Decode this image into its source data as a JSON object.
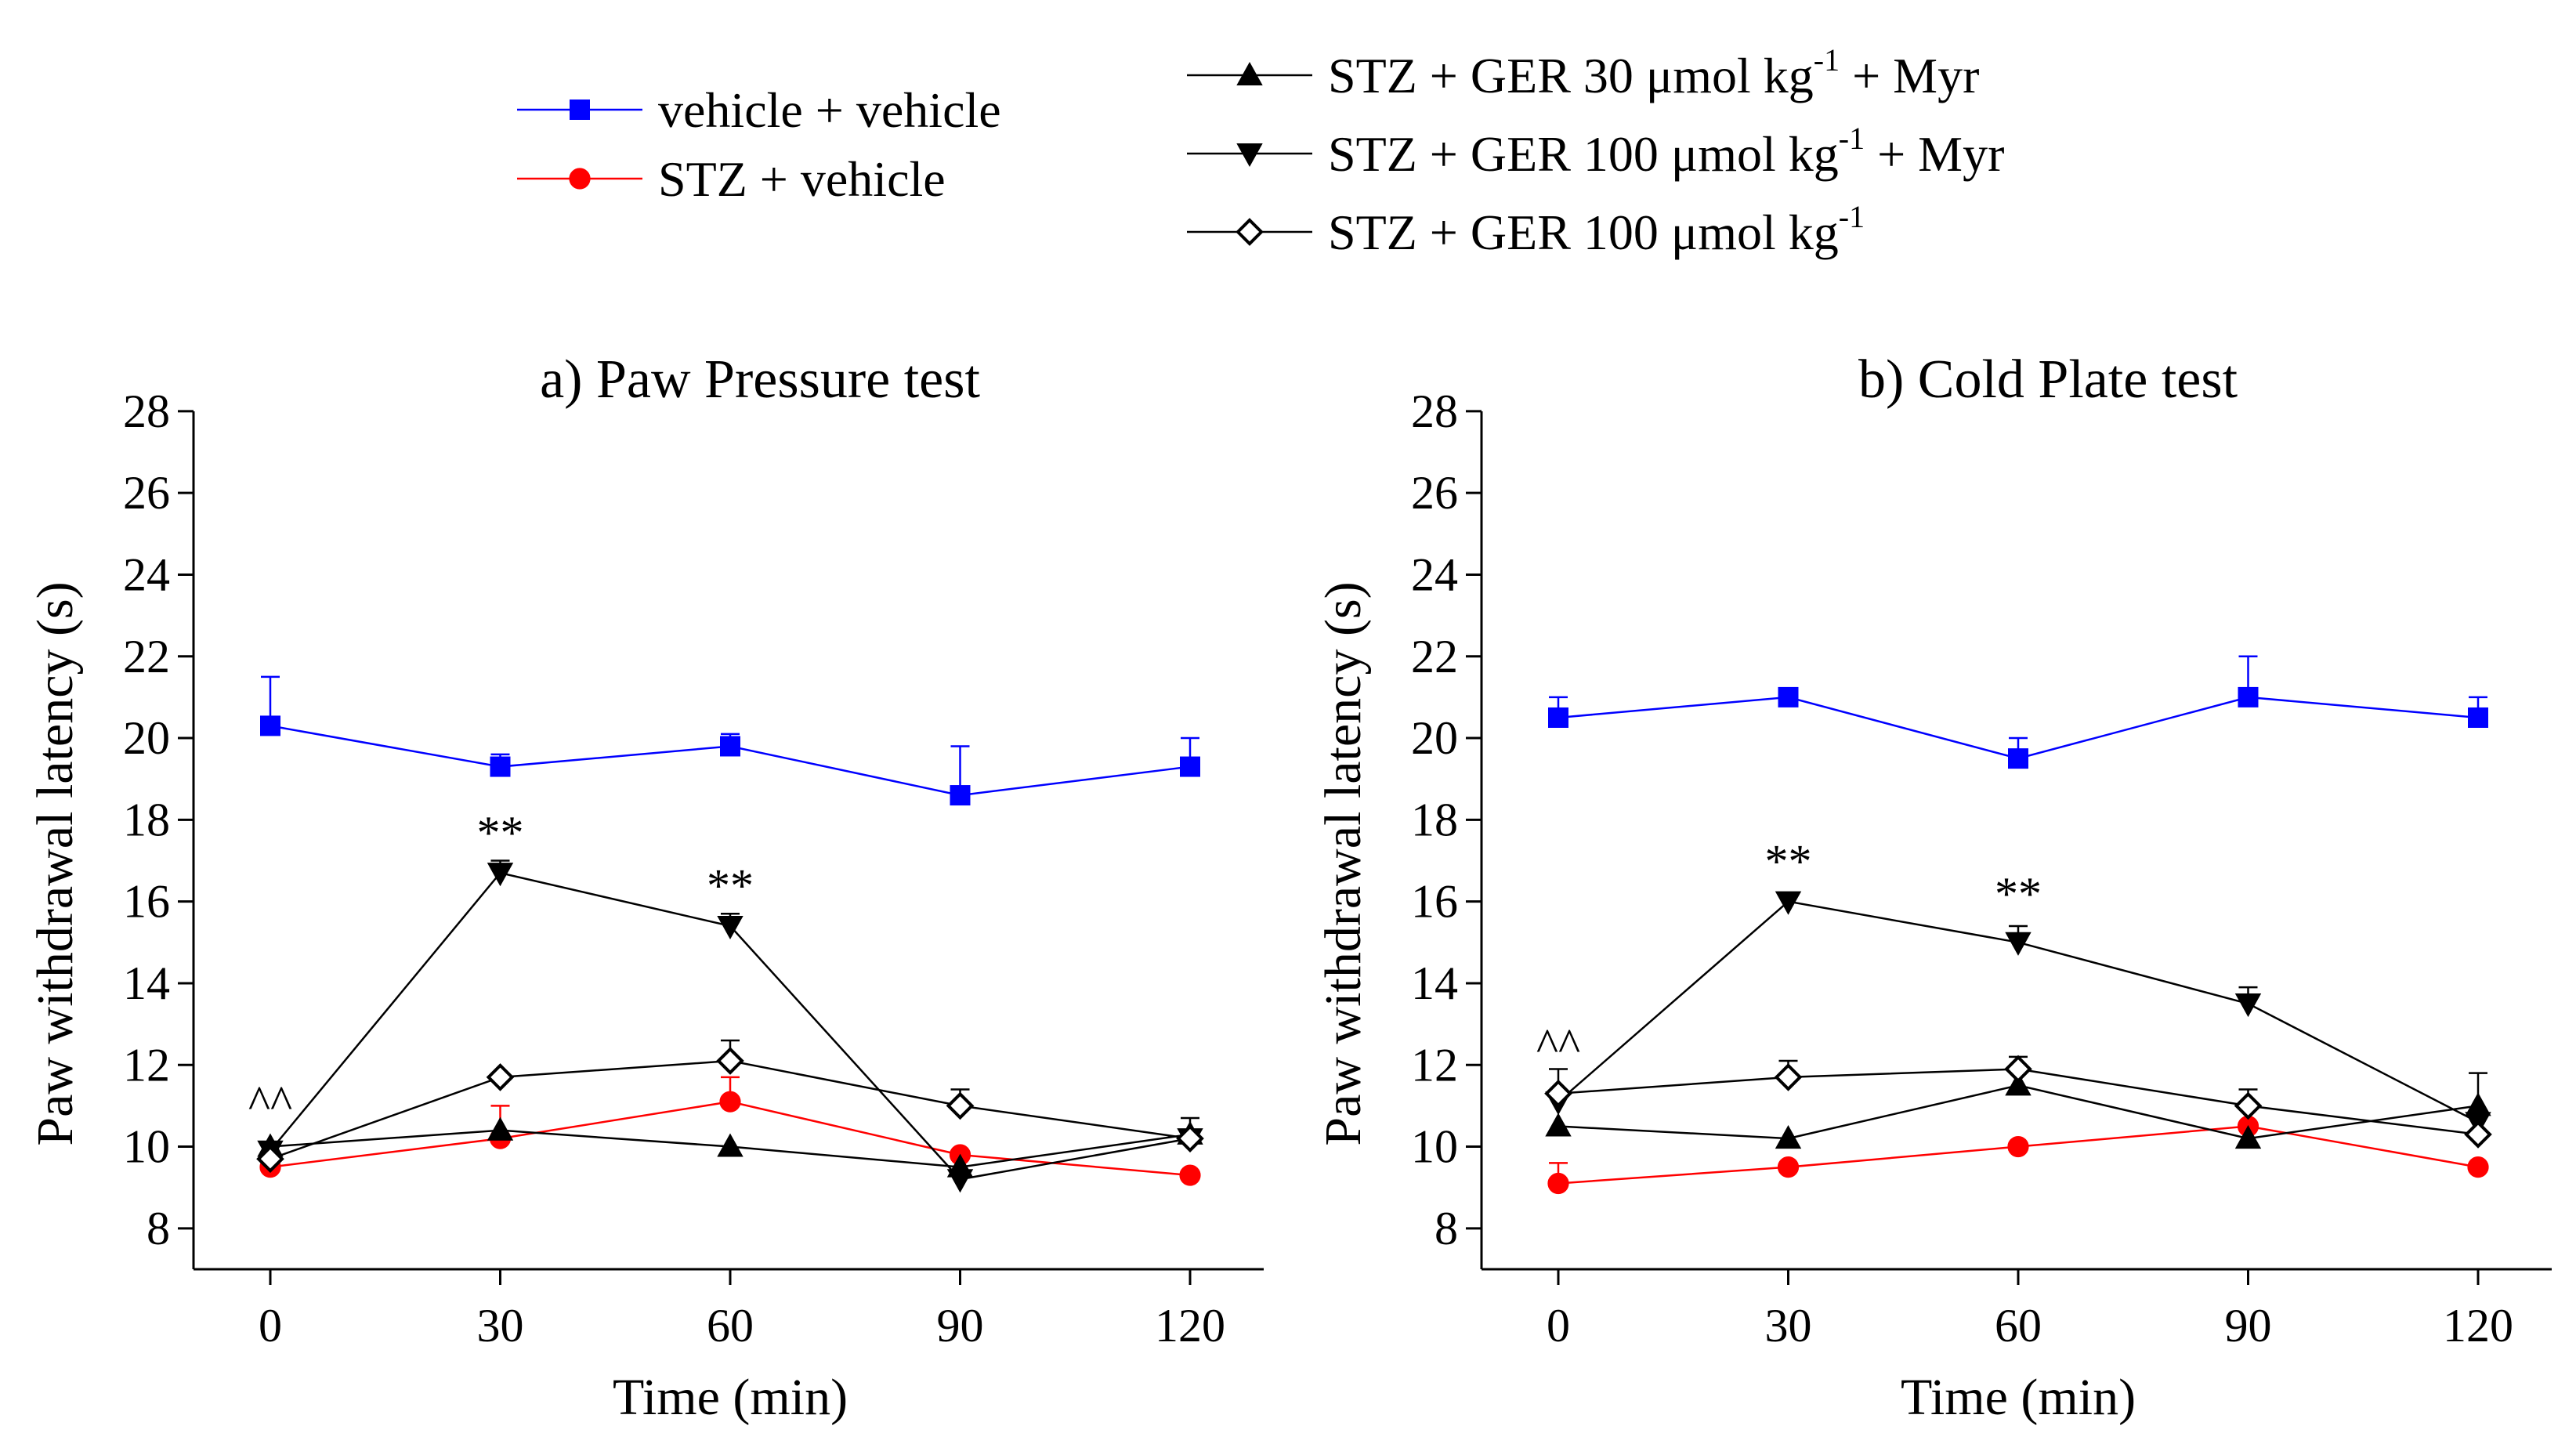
{
  "legend": {
    "entries": [
      {
        "id": "vv",
        "label": "vehicle + vehicle",
        "color": "#0000ff",
        "marker": "square",
        "marker_fill": "#0000ff",
        "line_color": "#0000ff"
      },
      {
        "id": "sv",
        "label": "STZ + vehicle",
        "color": "#ff0000",
        "marker": "circle",
        "marker_fill": "#ff0000",
        "line_color": "#ff0000"
      },
      {
        "id": "g30m",
        "label_prefix": "STZ + GER 30 μmol kg",
        "label_sup": "-1",
        "label_suffix": " + Myr",
        "color": "#000000",
        "marker": "triangle-up",
        "marker_fill": "#000000",
        "line_color": "#000000"
      },
      {
        "id": "g100m",
        "label_prefix": "STZ + GER 100 μmol kg",
        "label_sup": "-1",
        "label_suffix": " + Myr",
        "color": "#000000",
        "marker": "triangle-down",
        "marker_fill": "#000000",
        "line_color": "#000000"
      },
      {
        "id": "g100",
        "label_prefix": "STZ + GER 100 μmol kg",
        "label_sup": "-1",
        "label_suffix": "",
        "color": "#000000",
        "marker": "diamond",
        "marker_fill": "#ffffff",
        "line_color": "#000000"
      }
    ]
  },
  "chart_data": [
    {
      "type": "line",
      "title": "a) Paw Pressure test",
      "xlabel": "Time (min)",
      "ylabel": "Paw withdrawal latency (s)",
      "x": [
        0,
        30,
        60,
        90,
        120
      ],
      "xlim": [
        -10,
        130
      ],
      "ylim": [
        7,
        28
      ],
      "yticks": [
        8,
        10,
        12,
        14,
        16,
        18,
        20,
        22,
        24,
        26,
        28
      ],
      "xticks": [
        0,
        30,
        60,
        90,
        120
      ],
      "series": [
        {
          "id": "vv",
          "name": "vehicle + vehicle",
          "values": [
            20.3,
            19.3,
            19.8,
            18.6,
            19.3
          ],
          "errors": [
            1.2,
            0.3,
            0.3,
            1.2,
            0.7
          ]
        },
        {
          "id": "sv",
          "name": "STZ + vehicle",
          "values": [
            9.5,
            10.2,
            11.1,
            9.8,
            9.3
          ],
          "errors": [
            0,
            0.8,
            0.6,
            0,
            0
          ]
        },
        {
          "id": "g30m",
          "name": "STZ + GER 30 μmol kg-1 + Myr",
          "values": [
            10.0,
            10.4,
            10.0,
            9.5,
            10.3
          ],
          "errors": [
            0,
            0,
            0,
            0,
            0
          ]
        },
        {
          "id": "g100m",
          "name": "STZ + GER 100 μmol kg-1 + Myr",
          "values": [
            9.9,
            16.7,
            15.4,
            9.2,
            10.2
          ],
          "errors": [
            0,
            0.3,
            0.3,
            0,
            0
          ]
        },
        {
          "id": "g100",
          "name": "STZ + GER 100 μmol kg-1",
          "values": [
            9.7,
            11.7,
            12.1,
            11.0,
            10.2
          ],
          "errors": [
            0,
            0,
            0.5,
            0.4,
            0.5
          ]
        }
      ],
      "annotations": [
        {
          "text": "^^",
          "x": 0,
          "y": 10.7
        },
        {
          "text": "**",
          "x": 30,
          "y": 17.3
        },
        {
          "text": "**",
          "x": 60,
          "y": 16.0
        }
      ]
    },
    {
      "type": "line",
      "title": "b) Cold Plate test",
      "xlabel": "Time (min)",
      "ylabel": "Paw withdrawal latency (s)",
      "x": [
        0,
        30,
        60,
        90,
        120
      ],
      "xlim": [
        -10,
        130
      ],
      "ylim": [
        7,
        28
      ],
      "yticks": [
        8,
        10,
        12,
        14,
        16,
        18,
        20,
        22,
        24,
        26,
        28
      ],
      "xticks": [
        0,
        30,
        60,
        90,
        120
      ],
      "series": [
        {
          "id": "vv",
          "name": "vehicle + vehicle",
          "values": [
            20.5,
            21.0,
            19.5,
            21.0,
            20.5
          ],
          "errors": [
            0.5,
            0,
            0.5,
            1.0,
            0.5
          ]
        },
        {
          "id": "sv",
          "name": "STZ + vehicle",
          "values": [
            9.1,
            9.5,
            10.0,
            10.5,
            9.5
          ],
          "errors": [
            0.5,
            0,
            0,
            0,
            0
          ]
        },
        {
          "id": "g30m",
          "name": "STZ + GER 30 μmol kg-1 + Myr",
          "values": [
            10.5,
            10.2,
            11.5,
            10.2,
            11.0
          ],
          "errors": [
            0,
            0,
            0,
            0,
            0.8
          ]
        },
        {
          "id": "g100m",
          "name": "STZ + GER 100 μmol kg-1 + Myr",
          "values": [
            11.1,
            16.0,
            15.0,
            13.5,
            10.6
          ],
          "errors": [
            0,
            0.2,
            0.4,
            0.4,
            0
          ]
        },
        {
          "id": "g100",
          "name": "STZ + GER 100 μmol kg-1",
          "values": [
            11.3,
            11.7,
            11.9,
            11.0,
            10.3
          ],
          "errors": [
            0.6,
            0.4,
            0.3,
            0.4,
            0
          ]
        }
      ],
      "annotations": [
        {
          "text": "^^",
          "x": 0,
          "y": 12.1
        },
        {
          "text": "**",
          "x": 30,
          "y": 16.6
        },
        {
          "text": "**",
          "x": 60,
          "y": 15.8
        }
      ]
    }
  ]
}
